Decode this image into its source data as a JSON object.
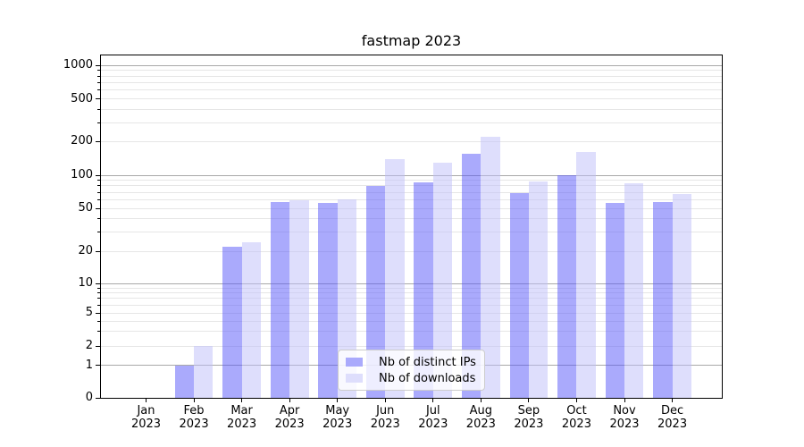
{
  "title": "fastmap 2023",
  "legend": {
    "items": [
      {
        "label": "Nb of distinct IPs",
        "color": "#aaaafc"
      },
      {
        "label": "Nb of downloads",
        "color": "#dedefc"
      }
    ]
  },
  "y_axis": {
    "tick_labels": [
      "0",
      "1",
      "2",
      "5",
      "10",
      "20",
      "50",
      "100",
      "200",
      "500",
      "1000"
    ]
  },
  "x_axis": {
    "month_labels": [
      "Jan",
      "Feb",
      "Mar",
      "Apr",
      "May",
      "Jun",
      "Jul",
      "Aug",
      "Sep",
      "Oct",
      "Nov",
      "Dec"
    ],
    "year": "2023"
  },
  "chart_data": {
    "type": "bar",
    "title": "fastmap 2023",
    "categories": [
      "Jan 2023",
      "Feb 2023",
      "Mar 2023",
      "Apr 2023",
      "May 2023",
      "Jun 2023",
      "Jul 2023",
      "Aug 2023",
      "Sep 2023",
      "Oct 2023",
      "Nov 2023",
      "Dec 2023"
    ],
    "series": [
      {
        "name": "Nb of distinct IPs",
        "color": "#aaaafc",
        "values": [
          0,
          1,
          22,
          57,
          56,
          80,
          86,
          155,
          69,
          100,
          56,
          57
        ]
      },
      {
        "name": "Nb of downloads",
        "color": "#dedefc",
        "values": [
          0,
          2,
          24,
          59,
          60,
          140,
          130,
          220,
          87,
          162,
          84,
          67
        ]
      }
    ],
    "yscale": "symlog",
    "yticks": [
      0,
      1,
      2,
      5,
      10,
      20,
      50,
      100,
      200,
      500,
      1000
    ],
    "ylim": [
      0,
      1300
    ],
    "xlabel": "",
    "ylabel": "",
    "grid": "on",
    "legend_position": "lower center"
  }
}
